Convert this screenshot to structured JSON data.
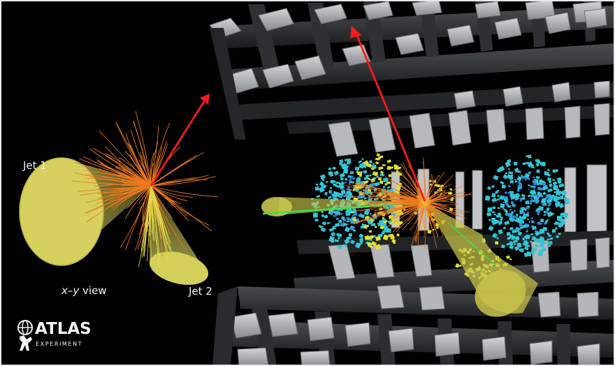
{
  "labels": {
    "jet1": "Jet 1",
    "jet2": "Jet 2",
    "view_axis": "x–y",
    "view_word": " view"
  },
  "logo": {
    "name": "ATLAS",
    "subtitle": "EXPERIMENT"
  },
  "colors": {
    "background": "#000000",
    "detector_steel": "#2b2c2e",
    "detector_panel": "#a9abad",
    "jet_cone": "#d8d561",
    "tracks": "#f07a1e",
    "missing_energy_arrow": "#ff1a1a",
    "calorimeter_em": "#e1e12a",
    "calorimeter_had": "#31c6d6",
    "muon_track": "#3ee04a"
  },
  "icons": [
    "atlas-logo-icon"
  ]
}
